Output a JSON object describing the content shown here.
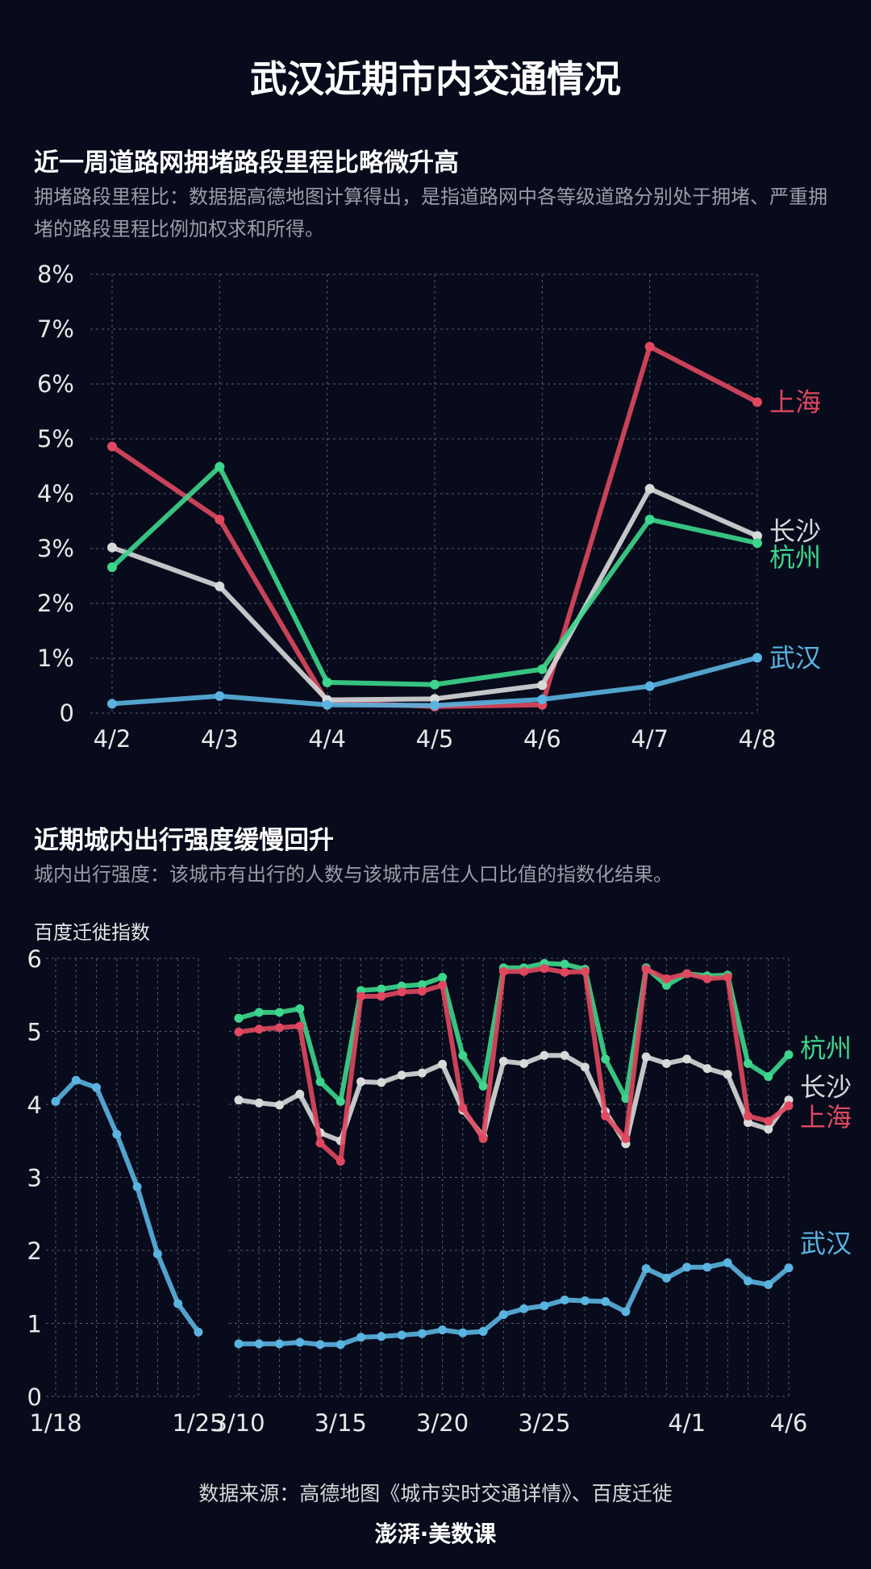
{
  "title": "武汉近期市内交通情况",
  "section1": {
    "title": "近一周道路网拥堵路段里程比略微升高",
    "desc": "拥堵路段里程比：数据据高德地图计算得出，是指道路网中各等级道路分别处于拥堵、严重拥堵的路段里程比例加权求和所得。"
  },
  "section2": {
    "title": "近期城内出行强度缓慢回升",
    "desc": "城内出行强度：该城市有出行的人数与该城市居住人口比值的指数化结果。",
    "ylabel": "百度迁徙指数"
  },
  "footer": {
    "source": "数据来源：高德地图《城市实时交通详情》、百度迁徙",
    "logo": "澎湃·美数课"
  },
  "colors": {
    "background": "#080b1c",
    "上海": "#e0485f",
    "杭州": "#3dd68c",
    "长沙": "#d9d9d9",
    "武汉": "#5ab4e0"
  },
  "chart_data": [
    {
      "type": "line",
      "ylabel": "",
      "ylim": [
        0,
        8
      ],
      "yticks": [
        "0",
        "1%",
        "2%",
        "3%",
        "4%",
        "5%",
        "6%",
        "7%",
        "8%"
      ],
      "grid": true,
      "categories": [
        "4/2",
        "4/3",
        "4/4",
        "4/5",
        "4/6",
        "4/7",
        "4/8"
      ],
      "series": [
        {
          "name": "上海",
          "values": [
            4.86,
            3.53,
            0.2,
            0.12,
            0.15,
            6.68,
            5.67
          ]
        },
        {
          "name": "长沙",
          "values": [
            3.02,
            2.31,
            0.24,
            0.26,
            0.51,
            4.09,
            3.23
          ]
        },
        {
          "name": "杭州",
          "values": [
            2.66,
            4.49,
            0.56,
            0.52,
            0.8,
            3.53,
            3.1
          ]
        },
        {
          "name": "武汉",
          "values": [
            0.17,
            0.31,
            0.15,
            0.14,
            0.25,
            0.49,
            1.01
          ]
        }
      ]
    },
    {
      "type": "line",
      "ylabel": "百度迁徙指数",
      "ylim": [
        0,
        6
      ],
      "yticks": [
        "0",
        "1",
        "2",
        "3",
        "4",
        "5",
        "6"
      ],
      "grid": true,
      "segments": [
        {
          "x": [
            "1/18",
            "1/19",
            "1/20",
            "1/21",
            "1/22",
            "1/23",
            "1/24",
            "1/25"
          ],
          "xticks": [
            "1/18",
            "1/25"
          ],
          "series": [
            {
              "name": "武汉",
              "values": [
                4.04,
                4.33,
                4.23,
                3.59,
                2.87,
                1.95,
                1.27,
                0.88
              ]
            }
          ]
        },
        {
          "x": [
            "3/10",
            "3/11",
            "3/12",
            "3/13",
            "3/14",
            "3/15",
            "3/16",
            "3/17",
            "3/18",
            "3/19",
            "3/20",
            "3/21",
            "3/22",
            "3/23",
            "3/24",
            "3/25",
            "3/26",
            "3/27",
            "3/28",
            "3/29",
            "3/30",
            "3/31",
            "4/1",
            "4/2",
            "4/3",
            "4/4",
            "4/5",
            "4/6"
          ],
          "xticks": [
            "3/10",
            "3/15",
            "3/20",
            "3/25",
            "4/1",
            "4/6"
          ],
          "series": [
            {
              "name": "杭州",
              "values": [
                5.18,
                5.26,
                5.26,
                5.31,
                4.31,
                4.04,
                5.56,
                5.58,
                5.62,
                5.64,
                5.74,
                4.67,
                4.25,
                5.87,
                5.87,
                5.93,
                5.92,
                5.85,
                4.62,
                4.08,
                5.87,
                5.63,
                5.79,
                5.76,
                5.77,
                4.56,
                4.38,
                4.68
              ]
            },
            {
              "name": "长沙",
              "values": [
                4.06,
                4.02,
                3.99,
                4.14,
                3.61,
                3.5,
                4.31,
                4.3,
                4.4,
                4.43,
                4.55,
                3.92,
                3.56,
                4.59,
                4.56,
                4.67,
                4.67,
                4.51,
                3.9,
                3.46,
                4.65,
                4.56,
                4.62,
                4.49,
                4.41,
                3.75,
                3.66,
                4.06
              ]
            },
            {
              "name": "上海",
              "values": [
                4.99,
                5.03,
                5.05,
                5.07,
                3.47,
                3.22,
                5.48,
                5.48,
                5.54,
                5.55,
                5.63,
                3.95,
                3.53,
                5.82,
                5.82,
                5.86,
                5.81,
                5.82,
                3.84,
                3.53,
                5.85,
                5.72,
                5.79,
                5.72,
                5.74,
                3.84,
                3.77,
                3.98
              ]
            },
            {
              "name": "武汉",
              "values": [
                0.72,
                0.72,
                0.72,
                0.74,
                0.71,
                0.71,
                0.81,
                0.82,
                0.84,
                0.86,
                0.91,
                0.87,
                0.89,
                1.12,
                1.2,
                1.24,
                1.32,
                1.31,
                1.3,
                1.16,
                1.75,
                1.62,
                1.77,
                1.77,
                1.83,
                1.58,
                1.53,
                1.76
              ]
            }
          ]
        }
      ]
    }
  ]
}
